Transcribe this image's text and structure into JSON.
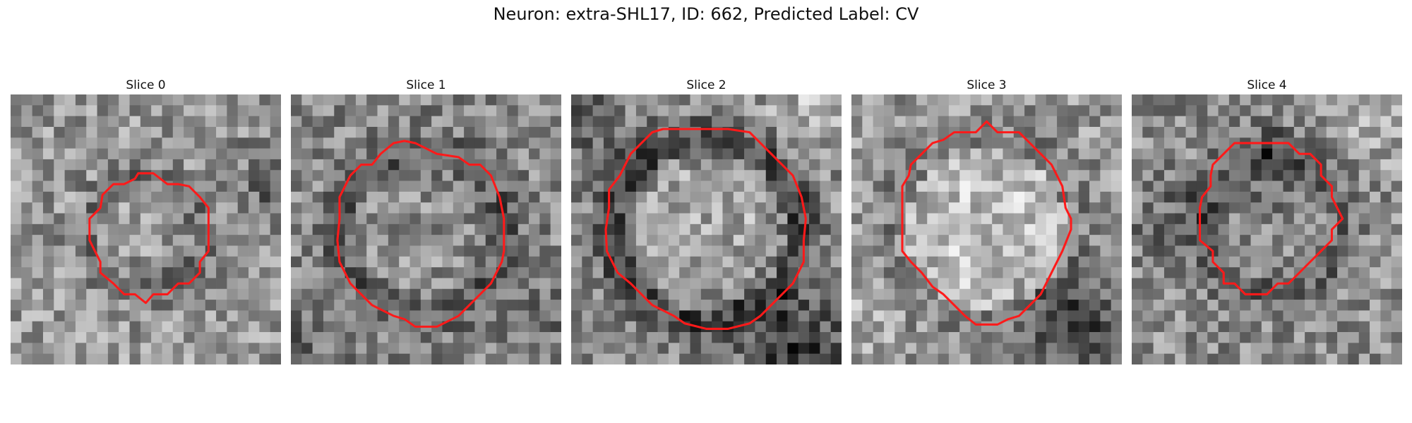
{
  "figure": {
    "title": "Neuron: extra-SHL17, ID: 662, Predicted Label: CV"
  },
  "panels": [
    {
      "label": "Slice 0",
      "contour": [
        [
          14.5,
          8.3
        ],
        [
          13.2,
          7.3
        ],
        [
          11.8,
          7.3
        ],
        [
          11.5,
          7.8
        ],
        [
          10.5,
          8.3
        ],
        [
          9.5,
          8.3
        ],
        [
          8.5,
          9.3
        ],
        [
          8.3,
          10.5
        ],
        [
          7.3,
          11.5
        ],
        [
          7.3,
          13.5
        ],
        [
          7.8,
          14.5
        ],
        [
          8.3,
          15.5
        ],
        [
          8.3,
          16.5
        ],
        [
          9.5,
          17.5
        ],
        [
          10.5,
          18.5
        ],
        [
          11.5,
          18.5
        ],
        [
          12.5,
          19.3
        ],
        [
          13.2,
          18.5
        ],
        [
          14.5,
          18.5
        ],
        [
          15.5,
          17.5
        ],
        [
          16.5,
          17.5
        ],
        [
          17.5,
          16.5
        ],
        [
          17.5,
          15.5
        ],
        [
          18.3,
          14.5
        ],
        [
          18.3,
          10.5
        ],
        [
          17.5,
          9.5
        ],
        [
          16.5,
          8.5
        ],
        [
          15.5,
          8.3
        ]
      ]
    },
    {
      "label": "Slice 1",
      "contour": [
        [
          8.3,
          5.5
        ],
        [
          7.5,
          6.5
        ],
        [
          6.5,
          6.5
        ],
        [
          5.5,
          7.5
        ],
        [
          4.5,
          9.5
        ],
        [
          4.5,
          11.5
        ],
        [
          4.3,
          13.5
        ],
        [
          4.5,
          15.5
        ],
        [
          5.5,
          17.5
        ],
        [
          6.5,
          18.5
        ],
        [
          7.5,
          19.5
        ],
        [
          9.5,
          20.5
        ],
        [
          10.5,
          20.8
        ],
        [
          11.5,
          21.5
        ],
        [
          13.5,
          21.5
        ],
        [
          15.5,
          20.5
        ],
        [
          17.5,
          18.5
        ],
        [
          18.5,
          17.5
        ],
        [
          19.5,
          15.5
        ],
        [
          19.7,
          14.5
        ],
        [
          19.7,
          11.5
        ],
        [
          19.3,
          9.5
        ],
        [
          18.5,
          7.5
        ],
        [
          17.5,
          6.5
        ],
        [
          16.5,
          6.5
        ],
        [
          15.5,
          5.8
        ],
        [
          13.5,
          5.5
        ],
        [
          11.5,
          4.5
        ],
        [
          10.5,
          4.3
        ],
        [
          9.5,
          4.5
        ]
      ]
    },
    {
      "label": "Slice 2",
      "contour": [
        [
          7.5,
          3.5
        ],
        [
          6.5,
          4.5
        ],
        [
          5.5,
          5.5
        ],
        [
          4.5,
          7.5
        ],
        [
          3.5,
          8.8
        ],
        [
          3.5,
          10.5
        ],
        [
          3.2,
          12.5
        ],
        [
          3.3,
          14.5
        ],
        [
          4.3,
          16.5
        ],
        [
          5.5,
          17.5
        ],
        [
          6.5,
          18.5
        ],
        [
          7.5,
          19.5
        ],
        [
          9.5,
          20.5
        ],
        [
          10.5,
          21.2
        ],
        [
          12.5,
          21.7
        ],
        [
          14.5,
          21.7
        ],
        [
          16.5,
          21.2
        ],
        [
          17.5,
          20.5
        ],
        [
          18.5,
          19.5
        ],
        [
          19.5,
          18.5
        ],
        [
          20.5,
          17.5
        ],
        [
          21.5,
          15.5
        ],
        [
          21.5,
          13.5
        ],
        [
          21.7,
          11.5
        ],
        [
          21.3,
          9.5
        ],
        [
          20.5,
          7.5
        ],
        [
          19.5,
          6.5
        ],
        [
          18.5,
          5.5
        ],
        [
          17.5,
          4.5
        ],
        [
          16.5,
          3.5
        ],
        [
          14.5,
          3.2
        ],
        [
          12.5,
          3.2
        ],
        [
          10.5,
          3.2
        ],
        [
          8.5,
          3.2
        ]
      ]
    },
    {
      "label": "Slice 3",
      "contour": [
        [
          12.5,
          2.5
        ],
        [
          11.5,
          3.5
        ],
        [
          9.5,
          3.5
        ],
        [
          8.5,
          4.2
        ],
        [
          7.5,
          4.5
        ],
        [
          6.5,
          5.5
        ],
        [
          5.5,
          6.5
        ],
        [
          5.3,
          7.5
        ],
        [
          4.7,
          8.5
        ],
        [
          4.7,
          14.5
        ],
        [
          5.5,
          15.5
        ],
        [
          6.5,
          16.5
        ],
        [
          7.5,
          17.8
        ],
        [
          8.5,
          18.5
        ],
        [
          9.5,
          19.5
        ],
        [
          10.5,
          20.5
        ],
        [
          11.5,
          21.3
        ],
        [
          13.5,
          21.3
        ],
        [
          14.5,
          20.8
        ],
        [
          15.5,
          20.5
        ],
        [
          16.5,
          19.5
        ],
        [
          17.5,
          18.5
        ],
        [
          18.5,
          16.5
        ],
        [
          19.5,
          14.5
        ],
        [
          20.3,
          12.5
        ],
        [
          20.3,
          11.5
        ],
        [
          19.8,
          10.5
        ],
        [
          19.5,
          8.5
        ],
        [
          18.5,
          6.5
        ],
        [
          17.5,
          5.5
        ],
        [
          16.5,
          4.5
        ],
        [
          15.5,
          3.5
        ],
        [
          13.5,
          3.5
        ]
      ]
    },
    {
      "label": "Slice 4",
      "contour": [
        [
          11.5,
          4.5
        ],
        [
          10.3,
          4.5
        ],
        [
          9.5,
          4.5
        ],
        [
          8.5,
          5.5
        ],
        [
          7.5,
          6.5
        ],
        [
          7.3,
          7.5
        ],
        [
          7.3,
          8.5
        ],
        [
          6.5,
          9.5
        ],
        [
          6.3,
          10.5
        ],
        [
          6.3,
          13.5
        ],
        [
          7.5,
          14.5
        ],
        [
          7.5,
          15.5
        ],
        [
          8.5,
          16.5
        ],
        [
          8.5,
          17.5
        ],
        [
          9.5,
          17.5
        ],
        [
          10.5,
          18.5
        ],
        [
          11.5,
          18.5
        ],
        [
          12.5,
          18.5
        ],
        [
          13.5,
          17.5
        ],
        [
          14.5,
          17.5
        ],
        [
          15.5,
          16.5
        ],
        [
          16.5,
          15.5
        ],
        [
          17.5,
          14.5
        ],
        [
          18.5,
          13.5
        ],
        [
          18.5,
          12.5
        ],
        [
          19.5,
          11.5
        ],
        [
          19.0,
          10.5
        ],
        [
          18.5,
          9.5
        ],
        [
          18.5,
          8.5
        ],
        [
          17.5,
          7.5
        ],
        [
          17.5,
          6.5
        ],
        [
          16.5,
          5.5
        ],
        [
          15.5,
          5.5
        ],
        [
          14.5,
          4.5
        ],
        [
          13.5,
          4.5
        ]
      ]
    }
  ],
  "colors": {
    "contour": "#ff1a1a",
    "title_text": "#111111"
  },
  "grid_size": 25
}
